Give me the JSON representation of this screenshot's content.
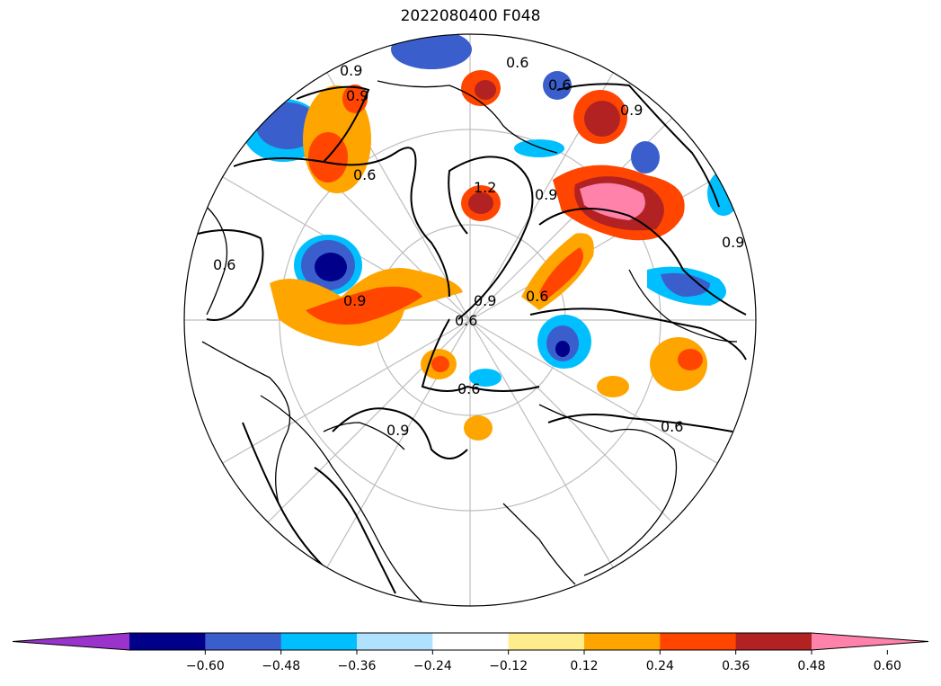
{
  "title": "2022080400 F048",
  "contour_labels": [
    "0.9",
    "0.9",
    "0.6",
    "0.6",
    "0.6",
    "1.2",
    "0.9",
    "0.9",
    "0.6",
    "0.9",
    "0.6",
    "0.6",
    "0.9",
    "0.6",
    "0.9",
    "0.6",
    "0.9"
  ],
  "colorbar": {
    "colors": [
      "#9933cc",
      "#00008b",
      "#3a5fcd",
      "#00bfff",
      "#b0e2ff",
      "#ffffff",
      "#ffec8b",
      "#ffa500",
      "#ff4500",
      "#b22222",
      "#ff82ab"
    ],
    "tick_labels": [
      "−0.60",
      "−0.48",
      "−0.36",
      "−0.24",
      "−0.12",
      "0.12",
      "0.24",
      "0.36",
      "0.48",
      "0.60"
    ],
    "extend": "both"
  }
}
